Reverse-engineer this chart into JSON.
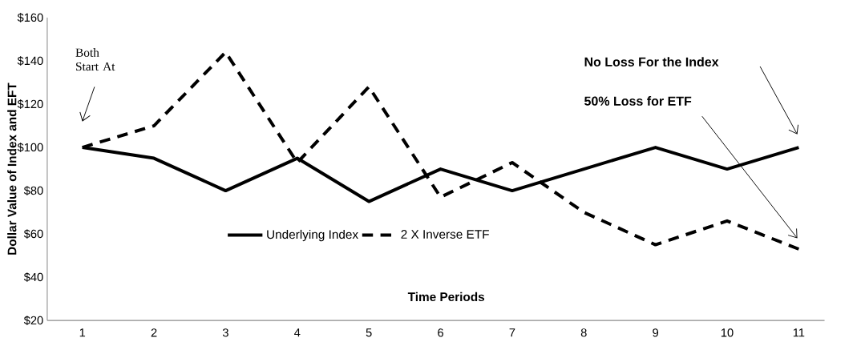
{
  "chart_data": {
    "type": "line",
    "xlabel": "Time Periods",
    "ylabel": "Dollar Value of Index and EFT",
    "categories": [
      "1",
      "2",
      "3",
      "4",
      "5",
      "6",
      "7",
      "8",
      "9",
      "10",
      "11"
    ],
    "series": [
      {
        "name": "Underlying Index",
        "color": "#000000",
        "line_style": "solid",
        "values": [
          100,
          95,
          80,
          95,
          75,
          90,
          80,
          90,
          100,
          90,
          100
        ]
      },
      {
        "name": "2 X Inverse ETF",
        "color": "#000000",
        "line_style": "dashed",
        "values": [
          100,
          110,
          144,
          93,
          128,
          77,
          93,
          70,
          55,
          66,
          53
        ]
      }
    ],
    "ylim": [
      20,
      160
    ],
    "yticks": [
      {
        "value": 20,
        "label": "$20"
      },
      {
        "value": 40,
        "label": "$40"
      },
      {
        "value": 60,
        "label": "$60"
      },
      {
        "value": 80,
        "label": "$80"
      },
      {
        "value": 100,
        "label": "$100"
      },
      {
        "value": 120,
        "label": "$120"
      },
      {
        "value": 140,
        "label": "$140"
      },
      {
        "value": 160,
        "label": "$160"
      }
    ],
    "legend": "center",
    "annotations": [
      "Both Start At",
      "**No Loss For the Index**",
      "**50% Loss for ETF**"
    ]
  }
}
